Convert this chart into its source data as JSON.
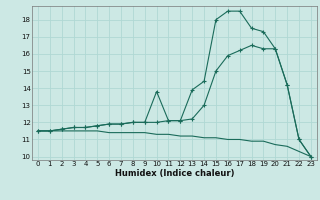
{
  "title": "",
  "xlabel": "Humidex (Indice chaleur)",
  "bg_color": "#cce8e4",
  "grid_color": "#b0d8d4",
  "line_color": "#1a6b5a",
  "xlim": [
    -0.5,
    23.5
  ],
  "ylim": [
    9.8,
    18.8
  ],
  "yticks": [
    10,
    11,
    12,
    13,
    14,
    15,
    16,
    17,
    18
  ],
  "xticks": [
    0,
    1,
    2,
    3,
    4,
    5,
    6,
    7,
    8,
    9,
    10,
    11,
    12,
    13,
    14,
    15,
    16,
    17,
    18,
    19,
    20,
    21,
    22,
    23
  ],
  "series1_x": [
    0,
    1,
    2,
    3,
    4,
    5,
    6,
    7,
    8,
    9,
    10,
    11,
    12,
    13,
    14,
    15,
    16,
    17,
    18,
    19,
    20,
    21,
    22,
    23
  ],
  "series1_y": [
    11.5,
    11.5,
    11.6,
    11.7,
    11.7,
    11.8,
    11.9,
    11.9,
    12.0,
    12.0,
    13.8,
    12.1,
    12.1,
    13.9,
    14.4,
    18.0,
    18.5,
    18.5,
    17.5,
    17.3,
    16.3,
    14.2,
    11.0,
    10.0
  ],
  "series2_x": [
    0,
    1,
    2,
    3,
    4,
    5,
    6,
    7,
    8,
    9,
    10,
    11,
    12,
    13,
    14,
    15,
    16,
    17,
    18,
    19,
    20,
    21,
    22,
    23
  ],
  "series2_y": [
    11.5,
    11.5,
    11.6,
    11.7,
    11.7,
    11.8,
    11.9,
    11.9,
    12.0,
    12.0,
    12.0,
    12.1,
    12.1,
    12.2,
    13.0,
    15.0,
    15.9,
    16.2,
    16.5,
    16.3,
    16.3,
    14.2,
    11.0,
    10.0
  ],
  "series3_x": [
    0,
    1,
    2,
    3,
    4,
    5,
    6,
    7,
    8,
    9,
    10,
    11,
    12,
    13,
    14,
    15,
    16,
    17,
    18,
    19,
    20,
    21,
    22,
    23
  ],
  "series3_y": [
    11.5,
    11.5,
    11.5,
    11.5,
    11.5,
    11.5,
    11.4,
    11.4,
    11.4,
    11.4,
    11.3,
    11.3,
    11.2,
    11.2,
    11.1,
    11.1,
    11.0,
    11.0,
    10.9,
    10.9,
    10.7,
    10.6,
    10.3,
    10.0
  ],
  "tick_fontsize": 5.0,
  "xlabel_fontsize": 6.0
}
